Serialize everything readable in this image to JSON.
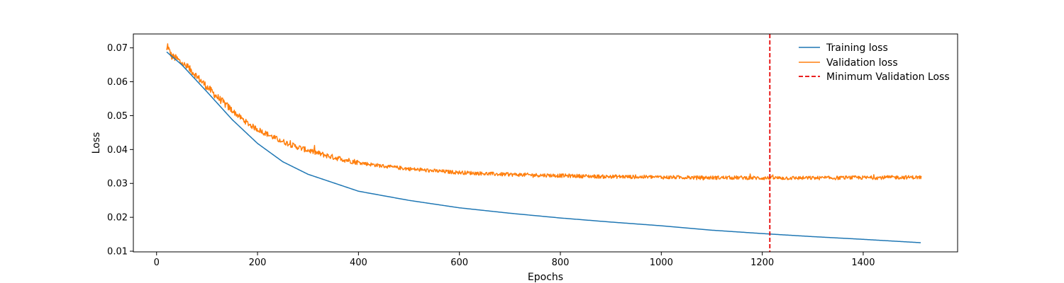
{
  "chart_data": {
    "type": "line",
    "title": "",
    "xlabel": "Epochs",
    "ylabel": "Loss",
    "xlim": [
      -46,
      1587
    ],
    "ylim": [
      0.0098,
      0.0741
    ],
    "x_ticks": [
      0,
      200,
      400,
      600,
      800,
      1000,
      1200,
      1400
    ],
    "x_tick_labels": [
      "0",
      "200",
      "400",
      "600",
      "800",
      "1000",
      "1200",
      "1400"
    ],
    "y_ticks": [
      0.01,
      0.02,
      0.03,
      0.04,
      0.05,
      0.06,
      0.07
    ],
    "y_tick_labels": [
      "0.01",
      "0.02",
      "0.03",
      "0.04",
      "0.05",
      "0.06",
      "0.07"
    ],
    "grid": false,
    "legend_position": "top-right",
    "colors": {
      "training": "#1f77b4",
      "validation": "#ff7f0e",
      "min_line": "#e60000"
    },
    "series": [
      {
        "name": "Training loss",
        "style": "solid",
        "color": "#1f77b4",
        "x": [
          20,
          50,
          100,
          150,
          200,
          250,
          300,
          400,
          500,
          600,
          700,
          800,
          900,
          1000,
          1100,
          1200,
          1300,
          1400,
          1515
        ],
        "y": [
          0.0688,
          0.065,
          0.057,
          0.0488,
          0.0418,
          0.0364,
          0.0327,
          0.0277,
          0.025,
          0.0228,
          0.0212,
          0.0198,
          0.0186,
          0.0175,
          0.0162,
          0.0152,
          0.0143,
          0.0135,
          0.0125
        ]
      },
      {
        "name": "Validation loss",
        "style": "solid",
        "color": "#ff7f0e",
        "x": [
          20,
          22,
          25,
          30,
          40,
          50,
          60,
          70,
          80,
          90,
          100,
          110,
          120,
          130,
          140,
          150,
          160,
          170,
          180,
          190,
          200,
          210,
          220,
          230,
          240,
          250,
          260,
          270,
          280,
          290,
          300,
          320,
          340,
          360,
          380,
          400,
          420,
          440,
          460,
          480,
          500,
          530,
          560,
          590,
          620,
          650,
          680,
          710,
          740,
          770,
          800,
          830,
          860,
          890,
          920,
          950,
          980,
          1010,
          1040,
          1070,
          1100,
          1130,
          1160,
          1190,
          1220,
          1250,
          1280,
          1310,
          1340,
          1370,
          1400,
          1430,
          1460,
          1490,
          1515
        ],
        "y": [
          0.069,
          0.0708,
          0.0692,
          0.0675,
          0.0668,
          0.0655,
          0.0643,
          0.0632,
          0.0615,
          0.06,
          0.0585,
          0.057,
          0.0555,
          0.0542,
          0.0528,
          0.0515,
          0.0502,
          0.049,
          0.0478,
          0.0468,
          0.046,
          0.0452,
          0.0445,
          0.0437,
          0.043,
          0.0424,
          0.0418,
          0.0412,
          0.0407,
          0.0402,
          0.0398,
          0.0389,
          0.0381,
          0.0374,
          0.0368,
          0.0362,
          0.0357,
          0.0353,
          0.0349,
          0.0346,
          0.0343,
          0.0339,
          0.0336,
          0.0333,
          0.0331,
          0.0329,
          0.0327,
          0.0326,
          0.0325,
          0.0324,
          0.0323,
          0.0322,
          0.0321,
          0.032,
          0.032,
          0.0319,
          0.0319,
          0.0318,
          0.0318,
          0.0317,
          0.0317,
          0.0317,
          0.0317,
          0.0316,
          0.0316,
          0.0316,
          0.0316,
          0.0316,
          0.0316,
          0.0317,
          0.0317,
          0.0317,
          0.0318,
          0.0318,
          0.0318
        ]
      },
      {
        "name": "Minimum Validation Loss",
        "style": "dashed",
        "color": "#e60000",
        "type": "vline",
        "x": 1215
      }
    ]
  }
}
